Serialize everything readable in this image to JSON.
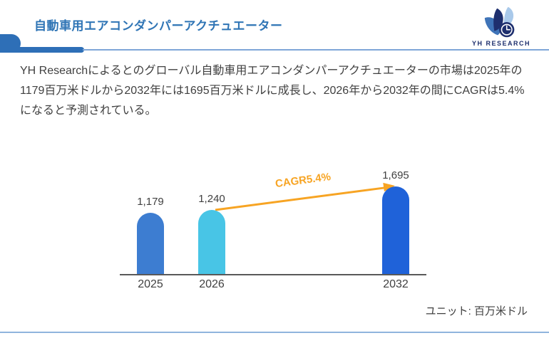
{
  "header": {
    "title": "自動車用エアコンダンパーアクチュエーター",
    "logo_text": "YH RESEARCH"
  },
  "summary": {
    "paragraph": "YH Researchによるとのグローバル自動車用エアコンダンパーアクチュエーターの市場は2025年の1179百万米ドルから2032年には1695百万米ドルに成長し、2026年から2032年の間にCAGRは5.4%になると予測されている。"
  },
  "chart_data": {
    "type": "bar",
    "categories": [
      "2025",
      "2026",
      "2032"
    ],
    "values": [
      1179,
      1240,
      1695
    ],
    "value_labels": [
      "1,179",
      "1,240",
      "1,695"
    ],
    "bar_colors": [
      "#3d7dd1",
      "#48c5e6",
      "#1f62d9"
    ],
    "annotation": {
      "label": "CAGR5.4%",
      "from_category": "2026",
      "to_category": "2032",
      "color": "#f7a423"
    },
    "unit_note": "ユニット: 百万米ドル",
    "ylim": [
      0,
      1700
    ],
    "grid": false,
    "legend": false
  },
  "colors": {
    "title_blue": "#2e74b5",
    "header_bar_blue": "#2e6fb7",
    "header_line_light": "#7ea6d8",
    "footer_line_light": "#8fb4dd",
    "axis_gray": "#595959",
    "text_gray": "#404040",
    "arrow_orange": "#f7a423",
    "logo_navy": "#1e2f6e"
  }
}
